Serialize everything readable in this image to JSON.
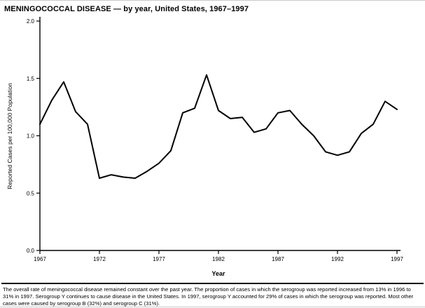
{
  "chart_data": {
    "type": "line",
    "title": "MENINGOCOCCAL DISEASE — by year, United States, 1967–1997",
    "xlabel": "Year",
    "ylabel": "Reported Cases per 100,000 Population",
    "x": [
      1967,
      1968,
      1969,
      1970,
      1971,
      1972,
      1973,
      1974,
      1975,
      1976,
      1977,
      1978,
      1979,
      1980,
      1981,
      1982,
      1983,
      1984,
      1985,
      1986,
      1987,
      1988,
      1989,
      1990,
      1991,
      1992,
      1993,
      1994,
      1995,
      1996,
      1997
    ],
    "values": [
      1.1,
      1.31,
      1.47,
      1.21,
      1.1,
      0.63,
      0.66,
      0.64,
      0.63,
      0.69,
      0.76,
      0.87,
      1.2,
      1.24,
      1.53,
      1.22,
      1.15,
      1.16,
      1.03,
      1.06,
      1.2,
      1.22,
      1.1,
      1.0,
      0.86,
      0.83,
      0.86,
      1.02,
      1.1,
      1.3,
      1.23
    ],
    "xlim": [
      1967,
      1997
    ],
    "ylim": [
      0,
      2
    ],
    "xticks": [
      1967,
      1972,
      1977,
      1982,
      1987,
      1992,
      1997
    ],
    "yticks": [
      0,
      0.5,
      1,
      1.5,
      2
    ],
    "ytick_labels": [
      "0.0",
      "0.5",
      "1.0",
      "1.5",
      "2.0"
    ],
    "grid": false,
    "legend": "none",
    "line_color": "#000000"
  },
  "footnote": {
    "text": "The overall rate of meningococcal disease remained constant over the past year. The proportion of cases in which the serogroup was reported increased from 13% in 1996 to 31% in 1997. Serogroup Y continues to cause disease in the United States. In 1997, serogroup Y accounted for 29% of cases in which the serogroup was reported. Most other cases were caused by serogroup B (32%) and serogroup C (31%)."
  }
}
